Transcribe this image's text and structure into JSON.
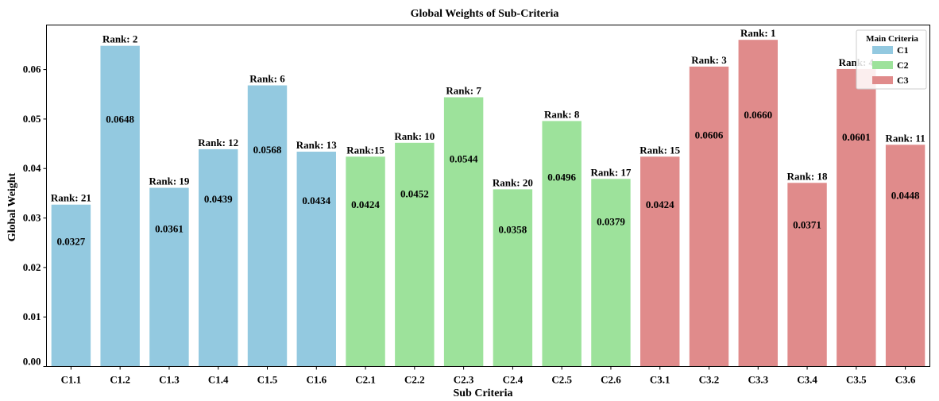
{
  "chart_data": {
    "type": "bar",
    "title": "Global Weights of Sub-Criteria",
    "xlabel": "Sub Criteria",
    "ylabel": "Global Weight",
    "ylim": [
      0,
      0.069
    ],
    "yticks": [
      "0.00",
      "0.01",
      "0.02",
      "0.03",
      "0.04",
      "0.05",
      "0.06"
    ],
    "grid": false,
    "legend": {
      "title": "Main Criteria",
      "placement": "top-right",
      "items": [
        {
          "label": "C1",
          "color": "#93c9e0"
        },
        {
          "label": "C2",
          "color": "#9de29b"
        },
        {
          "label": "C3",
          "color": "#e08b8b"
        }
      ]
    },
    "categories": [
      "C1.1",
      "C1.2",
      "C1.3",
      "C1.4",
      "C1.5",
      "C1.6",
      "C2.1",
      "C2.2",
      "C2.3",
      "C2.4",
      "C2.5",
      "C2.6",
      "C3.1",
      "C3.2",
      "C3.3",
      "C3.4",
      "C3.5",
      "C3.6"
    ],
    "values": [
      0.0327,
      0.0648,
      0.0361,
      0.0439,
      0.0568,
      0.0434,
      0.0424,
      0.0452,
      0.0544,
      0.0358,
      0.0496,
      0.0379,
      0.0424,
      0.0606,
      0.066,
      0.0371,
      0.0601,
      0.0448
    ],
    "value_labels": [
      "0.0327",
      "0.0648",
      "0.0361",
      "0.0439",
      "0.0568",
      "0.0434",
      "0.0424",
      "0.0452",
      "0.0544",
      "0.0358",
      "0.0496",
      "0.0379",
      "0.0424",
      "0.0606",
      "0.0660",
      "0.0371",
      "0.0601",
      "0.0448"
    ],
    "groups": [
      "C1",
      "C1",
      "C1",
      "C1",
      "C1",
      "C1",
      "C2",
      "C2",
      "C2",
      "C2",
      "C2",
      "C2",
      "C3",
      "C3",
      "C3",
      "C3",
      "C3",
      "C3"
    ],
    "rank_labels": [
      "Rank: 21",
      "Rank: 2",
      "Rank: 19",
      "Rank: 12",
      "Rank: 6",
      "Rank: 13",
      "Rank:15",
      "Rank: 10",
      "Rank: 7",
      "Rank: 20",
      "Rank: 8",
      "Rank: 17",
      "Rank: 15",
      "Rank: 3",
      "Rank: 1",
      "Rank: 18",
      "Rank: 4",
      "Rank: 11"
    ]
  }
}
